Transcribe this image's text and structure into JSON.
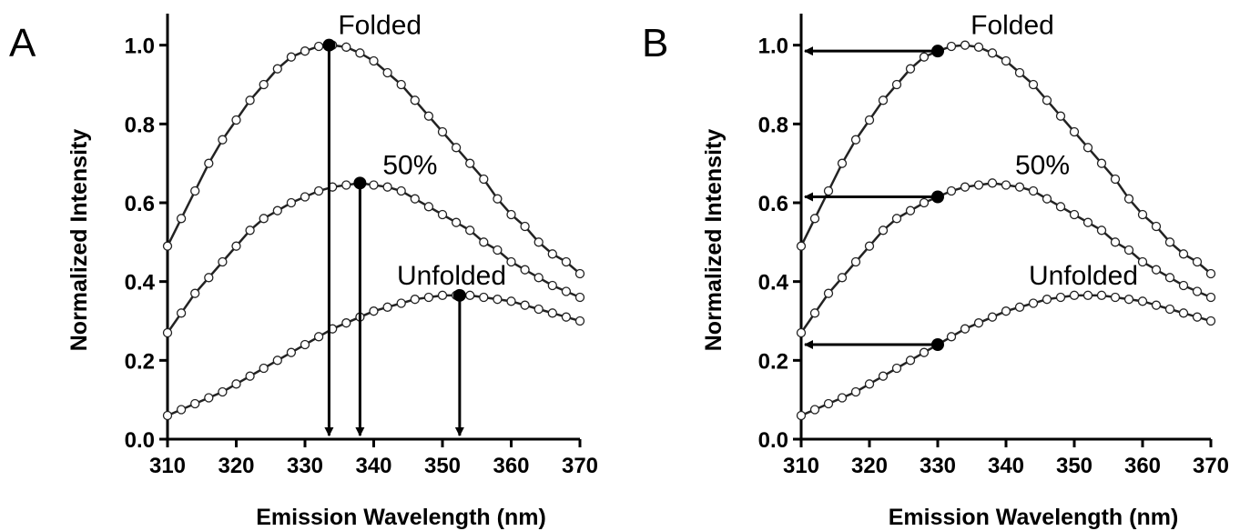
{
  "chart_data": [
    {
      "type": "line",
      "panel_label": "A",
      "x": [
        310,
        312,
        314,
        316,
        318,
        320,
        322,
        324,
        326,
        328,
        330,
        332,
        334,
        336,
        338,
        340,
        342,
        344,
        346,
        348,
        350,
        352,
        354,
        356,
        358,
        360,
        362,
        364,
        366,
        368,
        370
      ],
      "series": [
        {
          "name": "Folded",
          "color": "#222222",
          "values": [
            0.49,
            0.56,
            0.63,
            0.7,
            0.76,
            0.81,
            0.86,
            0.9,
            0.94,
            0.97,
            0.985,
            0.997,
            1.0,
            0.995,
            0.98,
            0.96,
            0.93,
            0.9,
            0.86,
            0.82,
            0.78,
            0.74,
            0.7,
            0.66,
            0.61,
            0.57,
            0.54,
            0.5,
            0.47,
            0.45,
            0.42
          ]
        },
        {
          "name": "50%",
          "color": "#222222",
          "values": [
            0.27,
            0.32,
            0.37,
            0.41,
            0.45,
            0.49,
            0.53,
            0.56,
            0.58,
            0.6,
            0.615,
            0.63,
            0.64,
            0.645,
            0.65,
            0.645,
            0.64,
            0.63,
            0.61,
            0.59,
            0.57,
            0.55,
            0.53,
            0.5,
            0.48,
            0.45,
            0.43,
            0.41,
            0.39,
            0.375,
            0.36
          ]
        },
        {
          "name": "Unfolded",
          "color": "#222222",
          "values": [
            0.06,
            0.075,
            0.09,
            0.105,
            0.12,
            0.14,
            0.16,
            0.18,
            0.2,
            0.22,
            0.24,
            0.26,
            0.28,
            0.295,
            0.31,
            0.325,
            0.335,
            0.345,
            0.355,
            0.36,
            0.365,
            0.365,
            0.365,
            0.36,
            0.355,
            0.35,
            0.34,
            0.33,
            0.32,
            0.31,
            0.3
          ]
        }
      ],
      "highlight": {
        "x": [
          333.5,
          338,
          352.5
        ],
        "y": [
          1.0,
          0.65,
          0.365
        ],
        "arrow": "down"
      },
      "xlim": [
        310,
        370
      ],
      "xticks": [
        310,
        320,
        330,
        340,
        350,
        360,
        370
      ],
      "ylim": [
        0,
        1.08
      ],
      "yticks": [
        {
          "value": 0,
          "label": "0.0"
        },
        {
          "value": 0.2,
          "label": "0.2"
        },
        {
          "value": 0.4,
          "label": "0.4"
        },
        {
          "value": 0.6,
          "label": "0.6"
        },
        {
          "value": 0.8,
          "label": "0.8"
        },
        {
          "value": 1,
          "label": "1.0"
        }
      ],
      "xlabel": "Emission Wavelength (nm)",
      "ylabel": "Normalized Intensity"
    },
    {
      "type": "line",
      "panel_label": "B",
      "x": [
        310,
        312,
        314,
        316,
        318,
        320,
        322,
        324,
        326,
        328,
        330,
        332,
        334,
        336,
        338,
        340,
        342,
        344,
        346,
        348,
        350,
        352,
        354,
        356,
        358,
        360,
        362,
        364,
        366,
        368,
        370
      ],
      "series": [
        {
          "name": "Folded",
          "color": "#222222",
          "values": [
            0.49,
            0.56,
            0.63,
            0.7,
            0.76,
            0.81,
            0.86,
            0.9,
            0.94,
            0.97,
            0.985,
            0.997,
            1.0,
            0.995,
            0.98,
            0.96,
            0.93,
            0.9,
            0.86,
            0.82,
            0.78,
            0.74,
            0.7,
            0.66,
            0.61,
            0.57,
            0.54,
            0.5,
            0.47,
            0.45,
            0.42
          ]
        },
        {
          "name": "50%",
          "color": "#222222",
          "values": [
            0.27,
            0.32,
            0.37,
            0.41,
            0.45,
            0.49,
            0.53,
            0.56,
            0.58,
            0.6,
            0.615,
            0.63,
            0.64,
            0.645,
            0.65,
            0.645,
            0.64,
            0.63,
            0.61,
            0.59,
            0.57,
            0.55,
            0.53,
            0.5,
            0.48,
            0.45,
            0.43,
            0.41,
            0.39,
            0.375,
            0.36
          ]
        },
        {
          "name": "Unfolded",
          "color": "#222222",
          "values": [
            0.06,
            0.075,
            0.09,
            0.105,
            0.12,
            0.14,
            0.16,
            0.18,
            0.2,
            0.22,
            0.24,
            0.26,
            0.28,
            0.295,
            0.31,
            0.325,
            0.335,
            0.345,
            0.355,
            0.36,
            0.365,
            0.365,
            0.365,
            0.36,
            0.355,
            0.35,
            0.34,
            0.33,
            0.32,
            0.31,
            0.3
          ]
        }
      ],
      "highlight": {
        "x": [
          330,
          330,
          330
        ],
        "y": [
          0.985,
          0.615,
          0.24
        ],
        "arrow": "left"
      },
      "xlim": [
        310,
        370
      ],
      "xticks": [
        310,
        320,
        330,
        340,
        350,
        360,
        370
      ],
      "ylim": [
        0,
        1.08
      ],
      "yticks": [
        {
          "value": 0,
          "label": "0.0"
        },
        {
          "value": 0.2,
          "label": "0.2"
        },
        {
          "value": 0.4,
          "label": "0.4"
        },
        {
          "value": 0.6,
          "label": "0.6"
        },
        {
          "value": 0.8,
          "label": "0.8"
        },
        {
          "value": 1,
          "label": "1.0"
        }
      ],
      "xlabel": "Emission Wavelength (nm)",
      "ylabel": "Normalized Intensity"
    }
  ]
}
